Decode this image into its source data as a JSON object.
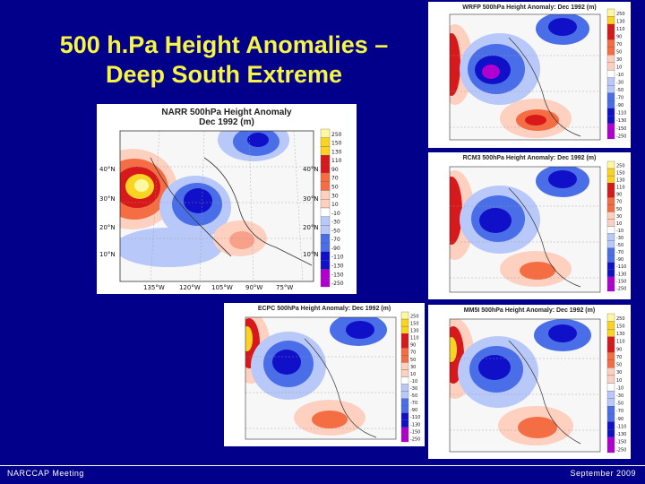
{
  "slide": {
    "title_line1": "500 h.Pa Height Anomalies –",
    "title_line2": "Deep South Extreme",
    "footer_left": "NARCCAP Meeting",
    "footer_right": "September 2009"
  },
  "colors": {
    "background": "#02008a",
    "title": "#f5f542",
    "positive_strong": "#d7191c",
    "positive_mid": "#f46d43",
    "positive_light": "#fdd0c0",
    "negative_strong": "#1010c8",
    "negative_mid": "#4a6ee8",
    "negative_light": "#b8c8f8",
    "extreme_negative": "#b000d0"
  },
  "panels": [
    {
      "id": "narr",
      "title_line1": "NARR 500hPa Height Anomaly",
      "title_line2": "Dec 1992 (m)",
      "lat_labels": [
        "40°N",
        "30°N",
        "20°N",
        "10°N"
      ],
      "lat_labels_right": [
        "40°N",
        "30°N",
        "20°N",
        "10°N"
      ],
      "lon_labels": [
        "135°W",
        "120°W",
        "105°W",
        "90°W",
        "75°W"
      ],
      "colorbar": [
        "250",
        "150",
        "130",
        "110",
        "90",
        "70",
        "50",
        "30",
        "10",
        "-10",
        "-30",
        "-50",
        "-70",
        "-90",
        "-110",
        "-130",
        "-150",
        "-250"
      ]
    },
    {
      "id": "wrfp",
      "title_line1": "WRFP 500hPa Height Anomaly: Dec 1992 (m)",
      "colorbar": [
        "250",
        "130",
        "110",
        "90",
        "70",
        "50",
        "30",
        "10",
        "-10",
        "-30",
        "-50",
        "-70",
        "-90",
        "-110",
        "-130",
        "-150",
        "-250"
      ]
    },
    {
      "id": "rcm3",
      "title_line1": "RCM3 500hPa Height Anomaly: Dec 1992 (m)",
      "colorbar": [
        "250",
        "150",
        "130",
        "110",
        "90",
        "70",
        "50",
        "30",
        "10",
        "-10",
        "-30",
        "-50",
        "-70",
        "-90",
        "-110",
        "-130",
        "-150",
        "-250"
      ]
    },
    {
      "id": "ecpc",
      "title_line1": "ECPC 500hPa Height Anomaly: Dec 1992 (m)",
      "colorbar": [
        "250",
        "150",
        "130",
        "110",
        "90",
        "70",
        "50",
        "30",
        "10",
        "-10",
        "-30",
        "-50",
        "-70",
        "-90",
        "-110",
        "-130",
        "-150",
        "-250"
      ]
    },
    {
      "id": "mm5i",
      "title_line1": "MM5I 500hPa Height Anomaly: Dec 1992 (m)",
      "colorbar": [
        "250",
        "150",
        "130",
        "110",
        "90",
        "70",
        "50",
        "30",
        "10",
        "-10",
        "-30",
        "-50",
        "-70",
        "-90",
        "-110",
        "-130",
        "-150",
        "-250"
      ]
    }
  ]
}
